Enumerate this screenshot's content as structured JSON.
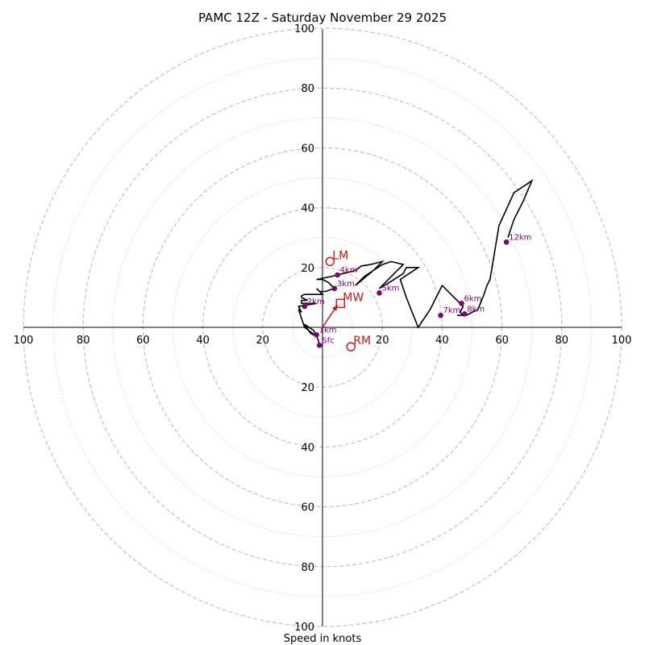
{
  "chart_data": {
    "type": "hodograph",
    "title": "PAMC 12Z - Saturday November 29 2025",
    "xlabel": "Speed in knots",
    "xlim": [
      -100,
      100
    ],
    "ylim": [
      -100,
      100
    ],
    "rings_major": [
      20,
      40,
      60,
      80,
      100
    ],
    "rings_minor": [
      10,
      30,
      50,
      70,
      90
    ],
    "x_ticks": [
      {
        "value": -100,
        "label": "100"
      },
      {
        "value": -80,
        "label": "80"
      },
      {
        "value": -60,
        "label": "60"
      },
      {
        "value": -40,
        "label": "40"
      },
      {
        "value": -20,
        "label": "20"
      },
      {
        "value": 20,
        "label": "20"
      },
      {
        "value": 40,
        "label": "40"
      },
      {
        "value": 60,
        "label": "60"
      },
      {
        "value": 80,
        "label": "80"
      },
      {
        "value": 100,
        "label": "100"
      }
    ],
    "y_ticks": [
      {
        "value": 100,
        "label": "100"
      },
      {
        "value": 80,
        "label": "80"
      },
      {
        "value": 60,
        "label": "60"
      },
      {
        "value": 40,
        "label": "40"
      },
      {
        "value": 20,
        "label": "20"
      },
      {
        "value": -20,
        "label": "20"
      },
      {
        "value": -40,
        "label": "40"
      },
      {
        "value": -60,
        "label": "60"
      },
      {
        "value": -80,
        "label": "80"
      },
      {
        "value": -100,
        "label": "100"
      }
    ],
    "trace": {
      "color": "#000000",
      "points": [
        [
          -1,
          -6
        ],
        [
          -1.5,
          -4
        ],
        [
          -3,
          -1
        ],
        [
          -6,
          1
        ],
        [
          -4,
          -2
        ],
        [
          -2,
          -3
        ],
        [
          -6,
          0
        ],
        [
          -8,
          6
        ],
        [
          -7,
          5
        ],
        [
          -8,
          7
        ],
        [
          -2,
          8
        ],
        [
          -7,
          8
        ],
        [
          -7,
          9
        ],
        [
          -5,
          9
        ],
        [
          -7,
          10
        ],
        [
          -7,
          10.5
        ],
        [
          -6,
          11
        ],
        [
          -2,
          11
        ],
        [
          0,
          11
        ],
        [
          -2,
          13
        ],
        [
          -1,
          12
        ],
        [
          1,
          12
        ],
        [
          4,
          13
        ],
        [
          2,
          15
        ],
        [
          0,
          16
        ],
        [
          -2,
          16
        ],
        [
          3,
          17
        ],
        [
          7,
          18
        ],
        [
          11,
          19
        ],
        [
          13,
          20.5
        ],
        [
          16,
          21
        ],
        [
          20,
          22
        ],
        [
          17,
          19
        ],
        [
          14,
          17
        ],
        [
          11,
          14
        ],
        [
          17,
          19
        ],
        [
          20,
          21
        ],
        [
          23,
          22
        ],
        [
          27,
          21
        ],
        [
          23,
          17
        ],
        [
          19,
          13
        ],
        [
          24,
          16
        ],
        [
          27,
          18
        ],
        [
          28,
          20
        ],
        [
          32,
          20
        ],
        [
          29,
          18
        ],
        [
          26,
          16
        ],
        [
          28,
          10
        ],
        [
          30,
          5
        ],
        [
          32,
          0
        ],
        [
          36,
          6
        ],
        [
          38,
          10
        ],
        [
          40,
          14
        ],
        [
          43,
          11
        ],
        [
          45,
          9
        ],
        [
          47,
          7
        ],
        [
          46,
          5
        ],
        [
          47,
          4
        ],
        [
          45,
          4
        ],
        [
          48,
          4
        ],
        [
          52,
          6
        ],
        [
          54,
          11
        ],
        [
          55,
          14
        ],
        [
          56,
          16
        ],
        [
          57,
          22
        ],
        [
          58,
          28
        ],
        [
          59,
          34
        ],
        [
          64,
          45
        ],
        [
          70,
          49
        ],
        [
          67,
          42
        ],
        [
          64,
          36
        ],
        [
          62,
          30
        ]
      ]
    },
    "height_markers": {
      "color": "#800080",
      "points": [
        {
          "label": "Sfc",
          "u": -1,
          "v": -6
        },
        {
          "label": "1km",
          "u": -2,
          "v": -2.5
        },
        {
          "label": "2km",
          "u": -6,
          "v": 7
        },
        {
          "label": "3km",
          "u": 4,
          "v": 13
        },
        {
          "label": "4km",
          "u": 5,
          "v": 17.5
        },
        {
          "label": "5km",
          "u": 19,
          "v": 11.5
        },
        {
          "label": "6km",
          "u": 46.5,
          "v": 8
        },
        {
          "label": "7km",
          "u": 39.5,
          "v": 4
        },
        {
          "label": "8km",
          "u": 47.5,
          "v": 4.5
        },
        {
          "label": "12km",
          "u": 61.5,
          "v": 28.5
        }
      ]
    },
    "storm_motion": {
      "color": "#cc1111",
      "bunkers_left": {
        "label": "LM",
        "u": 2.5,
        "v": 22
      },
      "bunkers_right": {
        "label": "RM",
        "u": 9.5,
        "v": -6.5
      },
      "mean_wind": {
        "label": "MW",
        "u": 6,
        "v": 8
      },
      "shear_vector": {
        "from_u": 0,
        "from_v": 0,
        "to_u": 5,
        "to_v": 7.5
      }
    }
  }
}
